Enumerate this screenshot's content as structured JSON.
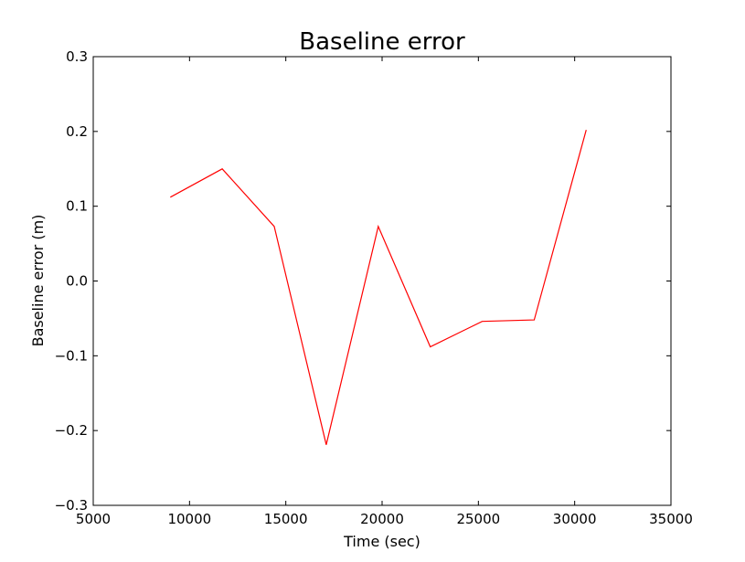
{
  "chart_data": {
    "type": "line",
    "title": "Baseline error",
    "xlabel": "Time (sec)",
    "ylabel": "Baseline error (m)",
    "xlim": [
      5000,
      35000
    ],
    "ylim": [
      -0.3,
      0.3
    ],
    "xticks": [
      5000,
      10000,
      15000,
      20000,
      25000,
      30000,
      35000
    ],
    "xtick_labels": [
      "5000",
      "10000",
      "15000",
      "20000",
      "25000",
      "30000",
      "35000"
    ],
    "yticks": [
      -0.3,
      -0.2,
      -0.1,
      0.0,
      0.1,
      0.2,
      0.3
    ],
    "ytick_labels": [
      "−0.3",
      "−0.2",
      "−0.1",
      "0.0",
      "0.1",
      "0.2",
      "0.3"
    ],
    "grid": false,
    "series": [
      {
        "color": "#ff0000",
        "x": [
          9000,
          11700,
          14400,
          17100,
          19800,
          22500,
          25200,
          27900,
          30600
        ],
        "y": [
          0.112,
          0.15,
          0.073,
          -0.219,
          0.073,
          -0.088,
          -0.054,
          -0.052,
          0.202
        ]
      }
    ]
  }
}
